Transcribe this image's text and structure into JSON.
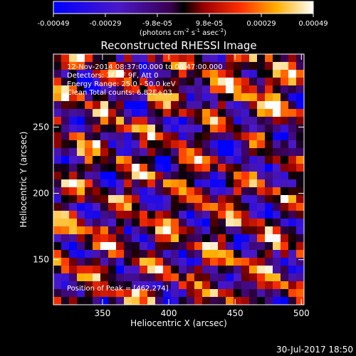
{
  "chart_data": {
    "type": "heatmap",
    "title": "Reconstructed RHESSI Image",
    "xlabel": "Heliocentric X (arcsec)",
    "ylabel": "Heliocentric Y (arcsec)",
    "xlim": [
      313,
      502
    ],
    "ylim": [
      116,
      305
    ],
    "x_ticks": [
      "350",
      "400",
      "450",
      "500"
    ],
    "y_ticks": [
      "150",
      "200",
      "250"
    ],
    "colorbar": {
      "ticks": [
        "-0.00049",
        "-0.00029",
        "-9.8e-05",
        "9.8e-05",
        "0.00029",
        "0.00049"
      ],
      "range": [
        -0.00049,
        0.00049
      ],
      "unit_main": "(photons cm",
      "unit_exp1": "-2",
      "unit_mid": " s",
      "unit_exp2": "-1",
      "unit_tail": " asec",
      "unit_exp3": "-2",
      "unit_end": ")"
    },
    "annotations": [
      "12-Nov-2014 08:37:00.000 to 08:47:00.000",
      "Detectors: 3F 8F 9F, Att 0",
      "Energy Range: 25.0 - 50.0 keV",
      "Clean     Total counts: 6.82E+03"
    ],
    "peak_label": "Position of Peak = [462,274]",
    "peak": [
      462,
      274
    ]
  },
  "footer": {
    "timestamp": "30-Jul-2017 18:50"
  }
}
